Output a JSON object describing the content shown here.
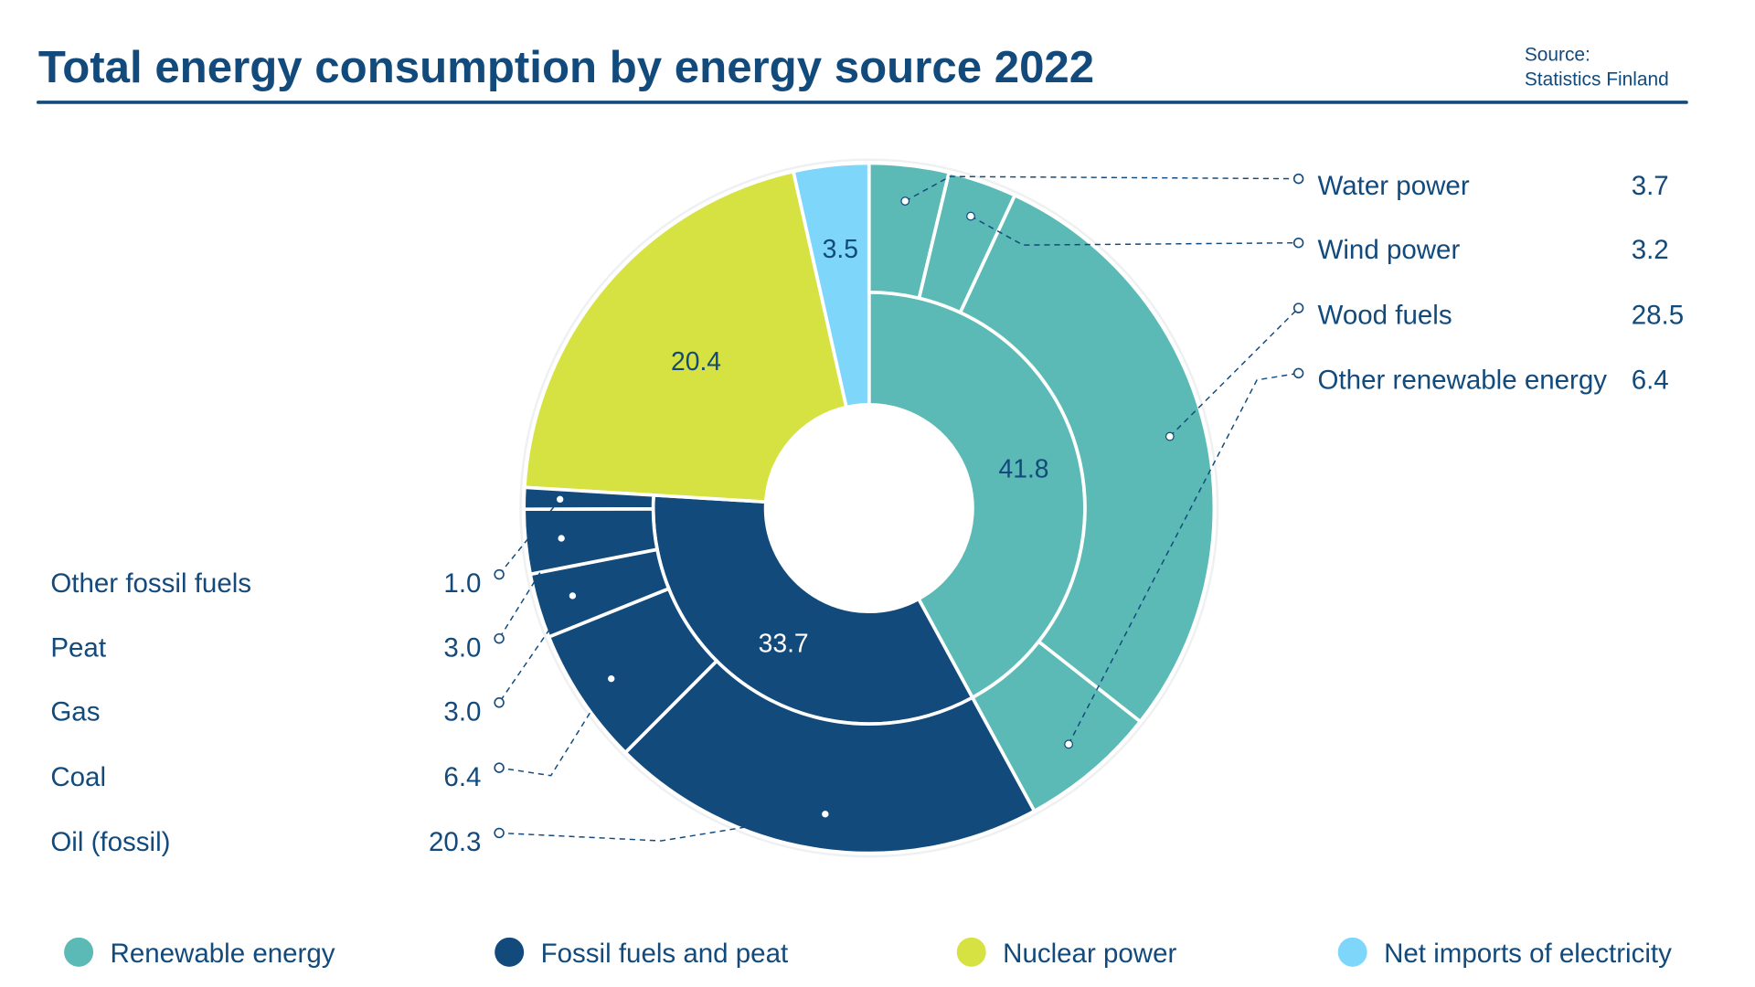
{
  "title": "Total energy consumption by energy source 2022",
  "source_label": "Source:",
  "source_name": "Statistics Finland",
  "colors": {
    "text": "#134a7c",
    "renewable": "#5bbab5",
    "fossil": "#134a7c",
    "nuclear": "#d6e241",
    "imports": "#7ed6fb"
  },
  "chart_data": {
    "type": "pie",
    "subtype": "nested donut",
    "title": "Total energy consumption by energy source 2022",
    "inner": [
      {
        "name": "Renewable energy",
        "value": 41.8,
        "label": "41.8",
        "color": "#5bbab5"
      },
      {
        "name": "Fossil fuels and peat",
        "value": 33.7,
        "label": "33.7",
        "color": "#134a7c"
      },
      {
        "name": "Nuclear power",
        "value": 20.4,
        "label": "20.4",
        "color": "#d6e241"
      },
      {
        "name": "Net imports of electricity",
        "value": 3.5,
        "label": "3.5",
        "color": "#7ed6fb"
      }
    ],
    "outer": [
      {
        "name": "Water power",
        "value": 3.7,
        "label": "3.7",
        "parent": "Renewable energy"
      },
      {
        "name": "Wind power",
        "value": 3.2,
        "label": "3.2",
        "parent": "Renewable energy"
      },
      {
        "name": "Wood fuels",
        "value": 28.5,
        "label": "28.5",
        "parent": "Renewable energy"
      },
      {
        "name": "Other renewable energy",
        "value": 6.4,
        "label": "6.4",
        "parent": "Renewable energy"
      },
      {
        "name": "Oil (fossil)",
        "value": 20.3,
        "label": "20.3",
        "parent": "Fossil fuels and peat"
      },
      {
        "name": "Coal",
        "value": 6.4,
        "label": "6.4",
        "parent": "Fossil fuels and peat"
      },
      {
        "name": "Gas",
        "value": 3.0,
        "label": "3.0",
        "parent": "Fossil fuels and peat"
      },
      {
        "name": "Peat",
        "value": 3.0,
        "label": "3.0",
        "parent": "Fossil fuels and peat"
      },
      {
        "name": "Other fossil fuels",
        "value": 1.0,
        "label": "1.0",
        "parent": "Fossil fuels and peat"
      }
    ],
    "legend": [
      "Renewable energy",
      "Fossil fuels and peat",
      "Nuclear power",
      "Net imports of electricity"
    ],
    "legend_position": "bottom"
  }
}
